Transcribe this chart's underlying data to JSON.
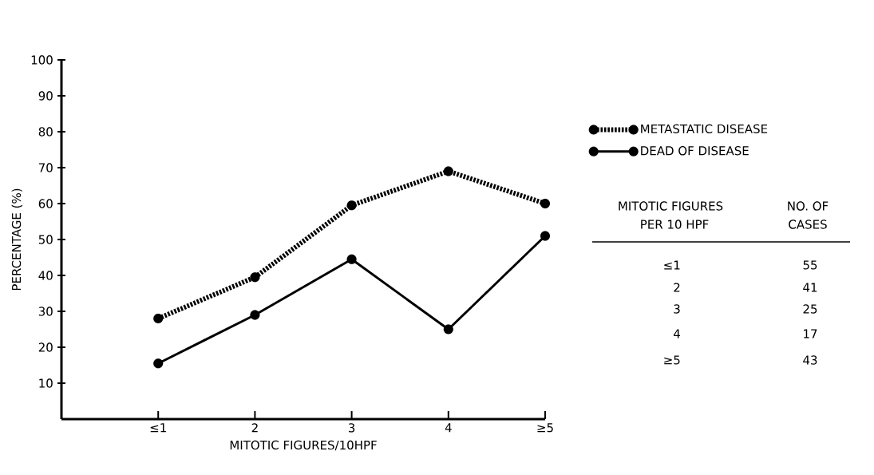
{
  "chart_data": {
    "type": "line",
    "xlabel": "MITOTIC FIGURES/10HPF",
    "ylabel": "PERCENTAGE (%)",
    "categories": [
      "≤1",
      "2",
      "3",
      "4",
      "≥5"
    ],
    "series": [
      {
        "name": "METASTATIC DISEASE",
        "color": "#000000",
        "line_style": "dotted",
        "values": [
          28,
          39.5,
          59.5,
          69,
          60
        ]
      },
      {
        "name": "DEAD OF DISEASE",
        "color": "#000000",
        "line_style": "solid",
        "values": [
          15.5,
          29,
          44.5,
          25,
          51
        ]
      }
    ],
    "marker": "circle",
    "ylim": [
      0,
      100
    ],
    "yticks": [
      10,
      20,
      30,
      40,
      50,
      60,
      70,
      80,
      90,
      100
    ],
    "grid": false,
    "legend": "right",
    "annotations": [
      "MITOTIC FIGURES",
      "PER 10 HPF",
      "NO. OF",
      "CASES",
      "≤1",
      "55",
      "2",
      "41",
      "3",
      "25",
      "4",
      "17",
      "≥5",
      "43"
    ]
  }
}
